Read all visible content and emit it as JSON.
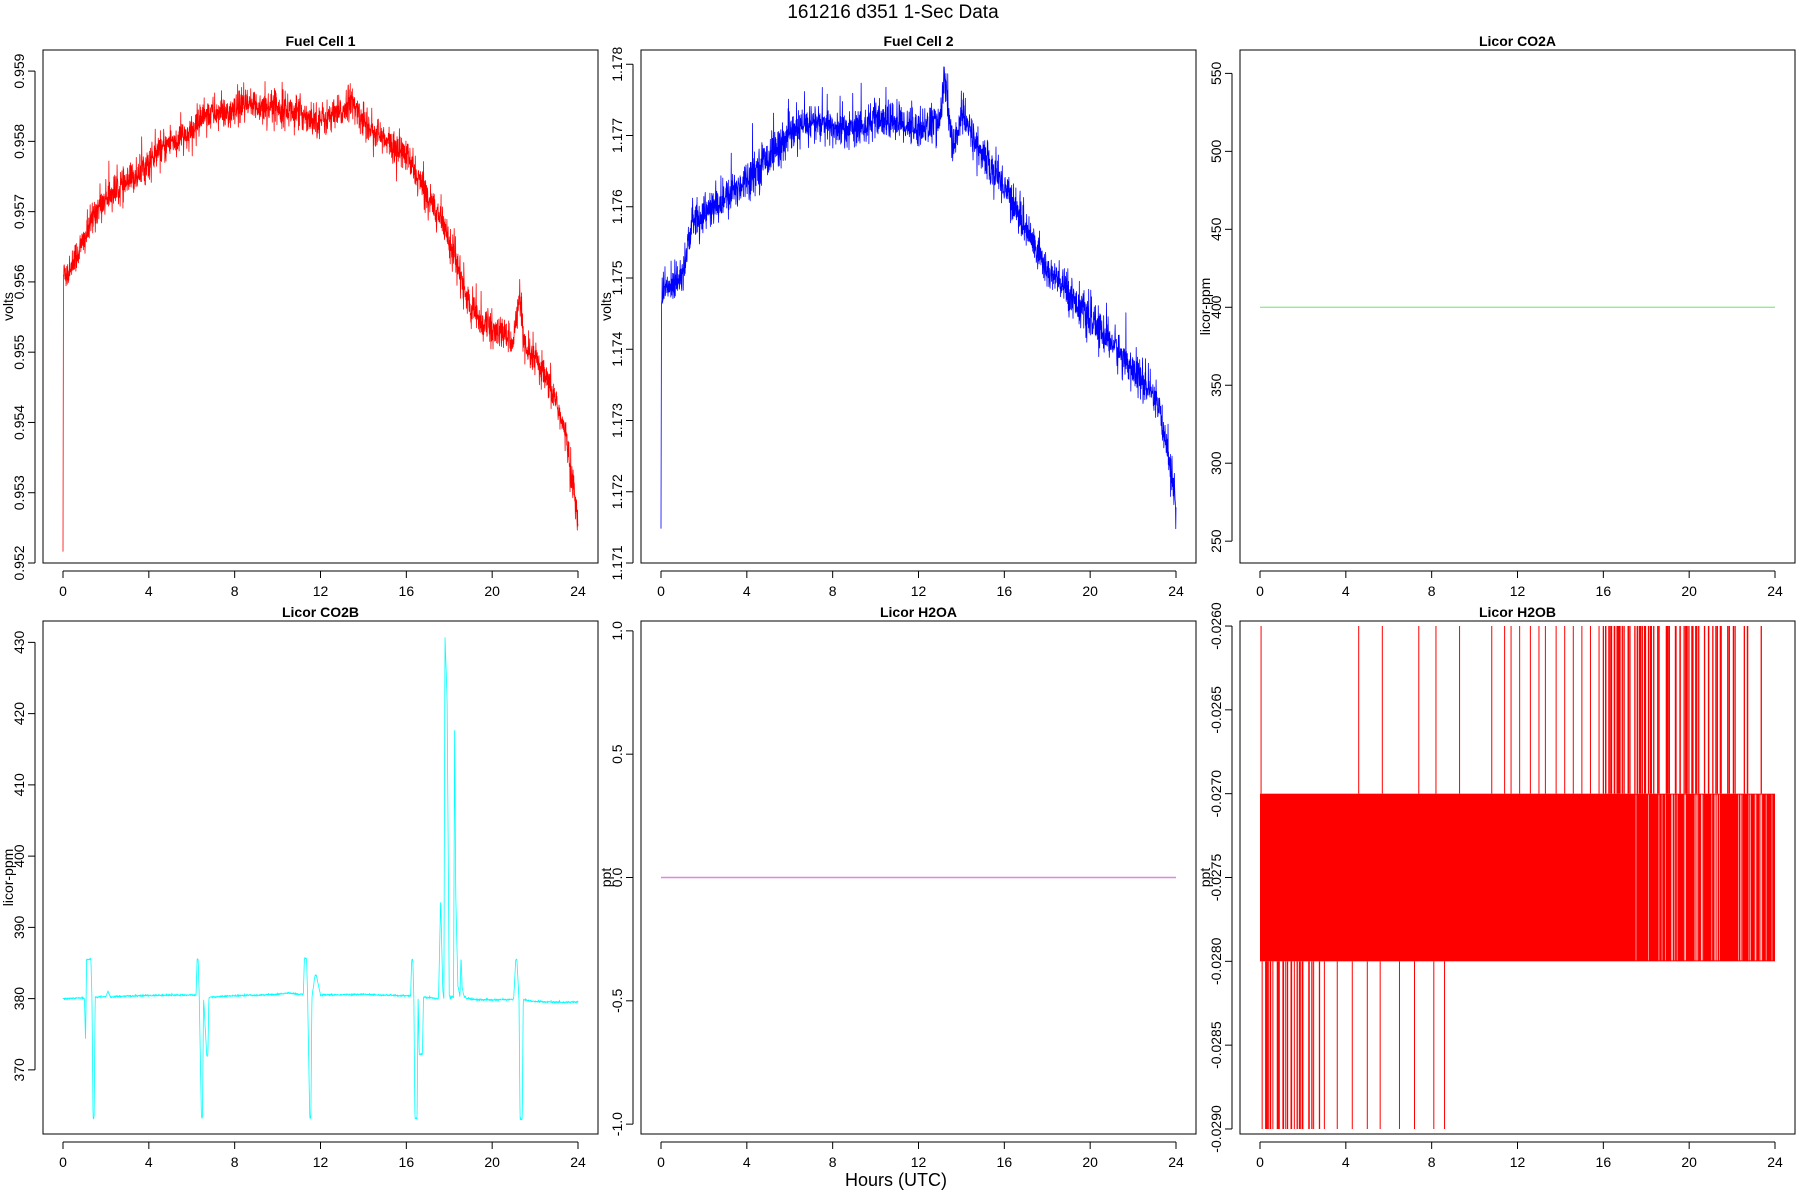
{
  "figure": {
    "title": "161216   d351   1-Sec Data",
    "xlabel": "Hours (UTC)"
  },
  "chart_data": [
    {
      "type": "line",
      "title": "Fuel Cell 1",
      "xlabel": "",
      "ylabel": "volts",
      "color": "#ff0000",
      "xlim": [
        0,
        24
      ],
      "ylim": [
        0.952,
        0.9593
      ],
      "xticks": [
        "0",
        "4",
        "8",
        "12",
        "16",
        "20",
        "24"
      ],
      "yticks": [
        "0.952",
        "0.953",
        "0.954",
        "0.955",
        "0.956",
        "0.957",
        "0.958",
        "0.959"
      ],
      "noise": 0.00022,
      "grid": false,
      "series": [
        {
          "x": [
            0,
            0.02,
            0.04,
            0.2,
            0.5,
            1,
            1.5,
            2,
            3,
            4,
            5,
            6,
            6.5,
            7,
            8,
            8.3,
            9,
            10,
            11,
            12,
            13,
            13.3,
            14,
            15,
            16,
            17,
            17.5,
            18,
            18.5,
            19,
            20,
            21,
            21.3,
            21.5,
            22,
            23,
            23.5,
            24
          ],
          "y": [
            0.9522,
            0.9559,
            0.9562,
            0.9561,
            0.9563,
            0.9566,
            0.957,
            0.9572,
            0.9574,
            0.9577,
            0.958,
            0.9581,
            0.9584,
            0.9584,
            0.9584,
            0.9585,
            0.9585,
            0.9585,
            0.9584,
            0.9583,
            0.9584,
            0.9586,
            0.9583,
            0.958,
            0.9578,
            0.9572,
            0.957,
            0.9566,
            0.9561,
            0.9556,
            0.9553,
            0.9552,
            0.9558,
            0.955,
            0.9549,
            0.9543,
            0.9537,
            0.9526
          ]
        }
      ]
    },
    {
      "type": "line",
      "title": "Fuel Cell 2",
      "xlabel": "",
      "ylabel": "volts",
      "color": "#0000ff",
      "xlim": [
        0,
        24
      ],
      "ylim": [
        1.171,
        1.1782
      ],
      "xticks": [
        "0",
        "4",
        "8",
        "12",
        "16",
        "20",
        "24"
      ],
      "yticks": [
        "1.171",
        "1.172",
        "1.173",
        "1.174",
        "1.175",
        "1.176",
        "1.177",
        "1.178"
      ],
      "noise": 0.00025,
      "grid": false,
      "series": [
        {
          "x": [
            0,
            0.02,
            0.05,
            0.5,
            1,
            1.5,
            2,
            3,
            4,
            5,
            6,
            7,
            8,
            9,
            10,
            11,
            12,
            13,
            13.2,
            13.6,
            14,
            14.5,
            15,
            16,
            17,
            18,
            19,
            20,
            21,
            22,
            23,
            23.5,
            24
          ],
          "y": [
            1.1714,
            1.1745,
            1.1748,
            1.1749,
            1.1751,
            1.1758,
            1.1759,
            1.1761,
            1.1764,
            1.1767,
            1.177,
            1.1772,
            1.1771,
            1.1771,
            1.1772,
            1.1772,
            1.1771,
            1.1772,
            1.1778,
            1.1768,
            1.1773,
            1.177,
            1.1767,
            1.1763,
            1.1757,
            1.1751,
            1.1748,
            1.1744,
            1.1741,
            1.1737,
            1.1733,
            1.1728,
            1.1718
          ]
        }
      ]
    },
    {
      "type": "line",
      "title": "Licor CO2A",
      "xlabel": "",
      "ylabel": "licor-ppm",
      "color": "#90ee90",
      "xlim": [
        0,
        24
      ],
      "ylim": [
        236,
        565
      ],
      "xticks": [
        "0",
        "4",
        "8",
        "12",
        "16",
        "20",
        "24"
      ],
      "yticks": [
        "250",
        "300",
        "350",
        "400",
        "450",
        "500",
        "550"
      ],
      "noise": 0,
      "grid": false,
      "series": [
        {
          "x": [
            0,
            24
          ],
          "y": [
            400,
            400
          ]
        }
      ]
    },
    {
      "type": "line",
      "title": "Licor CO2B",
      "xlabel": "",
      "ylabel": "licor-ppm",
      "color": "#00ffff",
      "xlim": [
        0,
        24
      ],
      "ylim": [
        361,
        433
      ],
      "xticks": [
        "0",
        "4",
        "8",
        "12",
        "16",
        "20",
        "24"
      ],
      "yticks": [
        "370",
        "380",
        "390",
        "400",
        "410",
        "420",
        "430"
      ],
      "noise": 0.12,
      "grid": false,
      "series": [
        {
          "x": [
            0,
            1.0,
            1.05,
            1.1,
            1.3,
            1.35,
            1.4,
            1.45,
            1.5,
            2.0,
            2.1,
            2.2,
            2.5,
            3.5,
            5.0,
            6.2,
            6.25,
            6.3,
            6.35,
            6.45,
            6.5,
            6.55,
            6.7,
            6.75,
            6.8,
            8.0,
            10.0,
            10.5,
            11.0,
            11.2,
            11.25,
            11.35,
            11.4,
            11.5,
            11.55,
            11.6,
            11.75,
            11.8,
            12.0,
            14.0,
            16.0,
            16.2,
            16.25,
            16.3,
            16.35,
            16.4,
            16.5,
            16.55,
            16.6,
            16.75,
            16.8,
            17.5,
            17.6,
            17.7,
            17.75,
            17.8,
            17.9,
            18.0,
            18.05,
            18.1,
            18.2,
            18.25,
            18.3,
            18.4,
            18.5,
            18.55,
            18.6,
            18.7,
            18.75,
            18.8,
            18.9,
            19.0,
            20.0,
            21.0,
            21.1,
            21.15,
            21.25,
            21.3,
            21.4,
            21.45,
            21.5,
            22.0,
            23.0,
            24.0
          ],
          "y": [
            380.0,
            380.1,
            374.0,
            385.5,
            385.5,
            380.1,
            363.2,
            363.2,
            380.2,
            380.3,
            381.0,
            380.2,
            380.3,
            380.4,
            380.5,
            380.5,
            385.5,
            385.5,
            380.2,
            363.3,
            363.3,
            380.2,
            372.0,
            372.0,
            380.2,
            380.4,
            380.6,
            380.8,
            380.6,
            380.6,
            385.6,
            385.6,
            380.2,
            363.2,
            363.2,
            380.2,
            383.3,
            383.3,
            380.5,
            380.6,
            380.4,
            380.4,
            385.5,
            385.5,
            380.2,
            363.2,
            363.2,
            380.2,
            372.2,
            372.2,
            380.2,
            380.0,
            394.0,
            381.0,
            380.0,
            431.0,
            422.0,
            380.5,
            380.0,
            380.2,
            380.3,
            418.0,
            395.0,
            382.0,
            380.3,
            386.0,
            381.5,
            380.2,
            380.3,
            380.0,
            380.1,
            379.9,
            379.8,
            379.9,
            385.5,
            385.5,
            380.0,
            363.0,
            363.0,
            380.0,
            379.8,
            379.6,
            379.5,
            379.5
          ]
        }
      ]
    },
    {
      "type": "line",
      "title": "Licor H2OA",
      "xlabel": "",
      "ylabel": "ppt",
      "color": "#dd88dd",
      "xlim": [
        0,
        24
      ],
      "ylim": [
        -1.04,
        1.04
      ],
      "xticks": [
        "0",
        "4",
        "8",
        "12",
        "16",
        "20",
        "24"
      ],
      "yticks": [
        "-1.0",
        "-0.5",
        "0.0",
        "0.5",
        "1.0"
      ],
      "noise": 0,
      "grid": false,
      "series": [
        {
          "x": [
            0,
            24
          ],
          "y": [
            0,
            0
          ]
        }
      ]
    },
    {
      "type": "line",
      "title": "Licor H2OB",
      "xlabel": "",
      "ylabel": "ppt",
      "color": "#ff0000",
      "xlim": [
        0,
        24
      ],
      "ylim": [
        -0.02903,
        -0.02597
      ],
      "xticks": [
        "0",
        "4",
        "8",
        "12",
        "16",
        "20",
        "24"
      ],
      "yticks": [
        "-0.0290",
        "-0.0285",
        "-0.0280",
        "-0.0275",
        "-0.0270",
        "-0.0265",
        "-0.0260"
      ],
      "noise": 0,
      "grid": false,
      "band": {
        "x": [
          0,
          24
        ],
        "y": [
          -0.027,
          -0.028
        ]
      },
      "spikes": [
        {
          "x": 0.05,
          "from": -0.027,
          "to": -0.026
        },
        {
          "x": 4.6,
          "from": -0.027,
          "to": -0.026
        },
        {
          "x": 5.7,
          "from": -0.027,
          "to": -0.026
        },
        {
          "x": 7.4,
          "from": -0.027,
          "to": -0.026
        },
        {
          "x": 8.2,
          "from": -0.027,
          "to": -0.026
        },
        {
          "x": 9.3,
          "from": -0.027,
          "to": -0.026
        },
        {
          "x": 10.8,
          "from": -0.027,
          "to": -0.026
        },
        {
          "x": 11.4,
          "from": -0.027,
          "to": -0.026
        },
        {
          "x": 11.7,
          "from": -0.027,
          "to": -0.026
        },
        {
          "x": 12.1,
          "from": -0.027,
          "to": -0.026
        },
        {
          "x": 12.6,
          "from": -0.027,
          "to": -0.026
        },
        {
          "x": 13.0,
          "from": -0.027,
          "to": -0.026
        },
        {
          "x": 13.3,
          "from": -0.027,
          "to": -0.026
        },
        {
          "x": 13.8,
          "from": -0.027,
          "to": -0.026
        },
        {
          "x": 14.2,
          "from": -0.027,
          "to": -0.026
        },
        {
          "x": 14.6,
          "from": -0.027,
          "to": -0.026
        },
        {
          "x": 15.0,
          "from": -0.027,
          "to": -0.026
        },
        {
          "x": 15.4,
          "from": -0.027,
          "to": -0.026
        },
        {
          "x": 15.8,
          "from": -0.027,
          "to": -0.026
        },
        {
          "x": 0.1,
          "from": -0.028,
          "to": -0.029
        },
        {
          "x": 0.3,
          "from": -0.028,
          "to": -0.029
        },
        {
          "x": 0.6,
          "from": -0.028,
          "to": -0.029
        },
        {
          "x": 0.9,
          "from": -0.028,
          "to": -0.029
        },
        {
          "x": 1.2,
          "from": -0.028,
          "to": -0.029
        },
        {
          "x": 1.6,
          "from": -0.028,
          "to": -0.029
        },
        {
          "x": 2.0,
          "from": -0.028,
          "to": -0.029
        },
        {
          "x": 2.5,
          "from": -0.028,
          "to": -0.029
        },
        {
          "x": 3.0,
          "from": -0.028,
          "to": -0.029
        },
        {
          "x": 3.6,
          "from": -0.028,
          "to": -0.029
        },
        {
          "x": 4.3,
          "from": -0.028,
          "to": -0.029
        },
        {
          "x": 5.0,
          "from": -0.028,
          "to": -0.029
        },
        {
          "x": 5.6,
          "from": -0.028,
          "to": -0.029
        },
        {
          "x": 6.5,
          "from": -0.028,
          "to": -0.029
        },
        {
          "x": 7.2,
          "from": -0.028,
          "to": -0.029
        },
        {
          "x": 8.1,
          "from": -0.028,
          "to": -0.029
        },
        {
          "x": 8.6,
          "from": -0.028,
          "to": -0.029
        }
      ],
      "dense_spikes": [
        {
          "x_range": [
            16.0,
            24.0
          ],
          "from": -0.027,
          "to": -0.026,
          "count": 70
        },
        {
          "x_range": [
            0.2,
            3.0
          ],
          "from": -0.028,
          "to": -0.029,
          "count": 22
        }
      ],
      "band_gaps": [
        {
          "x_range": [
            17.3,
            24.0
          ],
          "from": -0.027,
          "to": -0.028,
          "count": 40
        }
      ]
    }
  ]
}
